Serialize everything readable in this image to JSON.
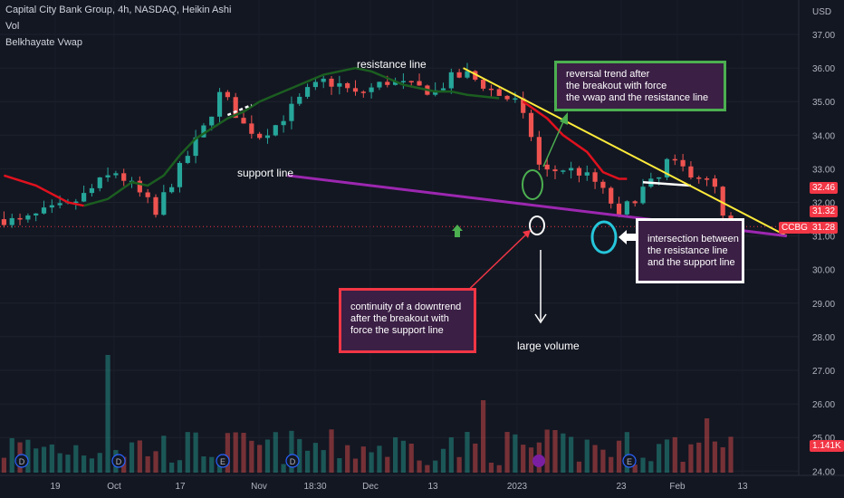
{
  "header": {
    "symbol_line": "Capital City Bank Group, 4h, NASDAQ, Heikin Ashi",
    "indicator_1": "Vol",
    "indicator_2": "Belkhayate Vwap"
  },
  "price_axis": {
    "currency": "USD",
    "ticks": [
      "37.00",
      "36.00",
      "35.00",
      "34.00",
      "33.00",
      "32.00",
      "31.00",
      "30.00",
      "29.00",
      "28.00",
      "27.00",
      "26.00",
      "25.00",
      "24.00"
    ]
  },
  "time_axis": {
    "ticks": [
      "19",
      "Oct",
      "17",
      "Nov",
      "18:30",
      "Dec",
      "13",
      "2023",
      "23",
      "Feb",
      "13"
    ]
  },
  "price_tags": {
    "upper": {
      "value": "32.46",
      "color": "#f23645"
    },
    "middle": {
      "value": "31.32",
      "color": "#f23645"
    },
    "ticker": "CCBG",
    "last": {
      "value": "31.28",
      "color": "#f23645"
    },
    "volume": {
      "value": "1.141K",
      "color": "#f23645"
    }
  },
  "annotations": {
    "resistance_label": "resistance line",
    "support_label": "support line",
    "large_volume_label": "large volume",
    "green_box": [
      "reversal trend after",
      "the breakout with force",
      "the vwap and the resistance line"
    ],
    "red_box": [
      "continuity of a downtrend",
      "after the breakout with",
      "force the support line"
    ],
    "white_box": [
      "intersection between",
      "the resistance line",
      "and the support line"
    ]
  },
  "event_markers": [
    "D",
    "D",
    "E",
    "D",
    "E"
  ],
  "colors": {
    "background": "#131722",
    "up": "#26a69a",
    "down": "#ef5350",
    "resistance": "#ffeb3b",
    "support": "#9c27b0",
    "vwap_red": "#e0111e",
    "vwap_green": "#1b5e20",
    "green_box_border": "#4caf50",
    "red_box_border": "#f23645",
    "white_box_border": "#ffffff"
  },
  "chart_data": {
    "type": "candlestick",
    "ylim": [
      23.9,
      37.6
    ],
    "price_path": [
      [
        0,
        31.5
      ],
      [
        2,
        31.4
      ],
      [
        5,
        31.7
      ],
      [
        8,
        31.9
      ],
      [
        10,
        32.2
      ],
      [
        12,
        32.6
      ],
      [
        14,
        32.9
      ],
      [
        16,
        32.5
      ],
      [
        18,
        32.0
      ],
      [
        19,
        31.6
      ],
      [
        20,
        32.2
      ],
      [
        22,
        33.0
      ],
      [
        25,
        34.2
      ],
      [
        27,
        35.2
      ],
      [
        28,
        35.0
      ],
      [
        30,
        34.3
      ],
      [
        32,
        34.0
      ],
      [
        34,
        34.3
      ],
      [
        36,
        34.8
      ],
      [
        38,
        35.3
      ],
      [
        40,
        35.6
      ],
      [
        42,
        35.5
      ],
      [
        44,
        35.2
      ],
      [
        46,
        35.4
      ],
      [
        48,
        35.6
      ],
      [
        50,
        35.5
      ],
      [
        52,
        35.4
      ],
      [
        54,
        35.3
      ],
      [
        56,
        35.7
      ],
      [
        58,
        35.8
      ],
      [
        60,
        35.5
      ],
      [
        62,
        35.2
      ],
      [
        64,
        35.0
      ],
      [
        66,
        34.0
      ],
      [
        67,
        33.1
      ],
      [
        68,
        32.9
      ],
      [
        70,
        33.0
      ],
      [
        72,
        32.9
      ],
      [
        74,
        32.6
      ],
      [
        76,
        32.0
      ],
      [
        77,
        31.5
      ],
      [
        78,
        31.9
      ],
      [
        80,
        32.4
      ],
      [
        82,
        32.7
      ],
      [
        83,
        33.2
      ],
      [
        85,
        33.0
      ],
      [
        87,
        32.8
      ],
      [
        89,
        32.4
      ],
      [
        90,
        31.5
      ],
      [
        91,
        31.28
      ]
    ],
    "vwap_red": [
      [
        0,
        32.8
      ],
      [
        4,
        32.5
      ],
      [
        8,
        32.0
      ],
      [
        10,
        31.9
      ],
      [
        65,
        35.0
      ],
      [
        68,
        34.5
      ],
      [
        70,
        34.0
      ],
      [
        73,
        33.5
      ],
      [
        75,
        32.9
      ],
      [
        77,
        32.7
      ],
      [
        78,
        32.7
      ]
    ],
    "vwap_green": [
      [
        10,
        31.9
      ],
      [
        13,
        32.1
      ],
      [
        16,
        32.6
      ],
      [
        18,
        32.5
      ],
      [
        20,
        32.8
      ],
      [
        22,
        33.4
      ],
      [
        24,
        33.9
      ],
      [
        26,
        34.2
      ],
      [
        28,
        34.5
      ],
      [
        30,
        34.7
      ],
      [
        32,
        35.0
      ],
      [
        34,
        35.2
      ],
      [
        36,
        35.4
      ],
      [
        38,
        35.6
      ],
      [
        40,
        35.8
      ],
      [
        42,
        35.9
      ],
      [
        44,
        36.0
      ],
      [
        46,
        35.9
      ],
      [
        48,
        35.7
      ],
      [
        50,
        35.5
      ],
      [
        52,
        35.4
      ],
      [
        54,
        35.3
      ],
      [
        56,
        35.3
      ],
      [
        58,
        35.2
      ],
      [
        62,
        35.1
      ]
    ],
    "resistance_line": [
      [
        57.5,
        36.0
      ],
      [
        98,
        31.0
      ]
    ],
    "support_line": [
      [
        35.5,
        32.8
      ],
      [
        98,
        31.0
      ]
    ]
  }
}
